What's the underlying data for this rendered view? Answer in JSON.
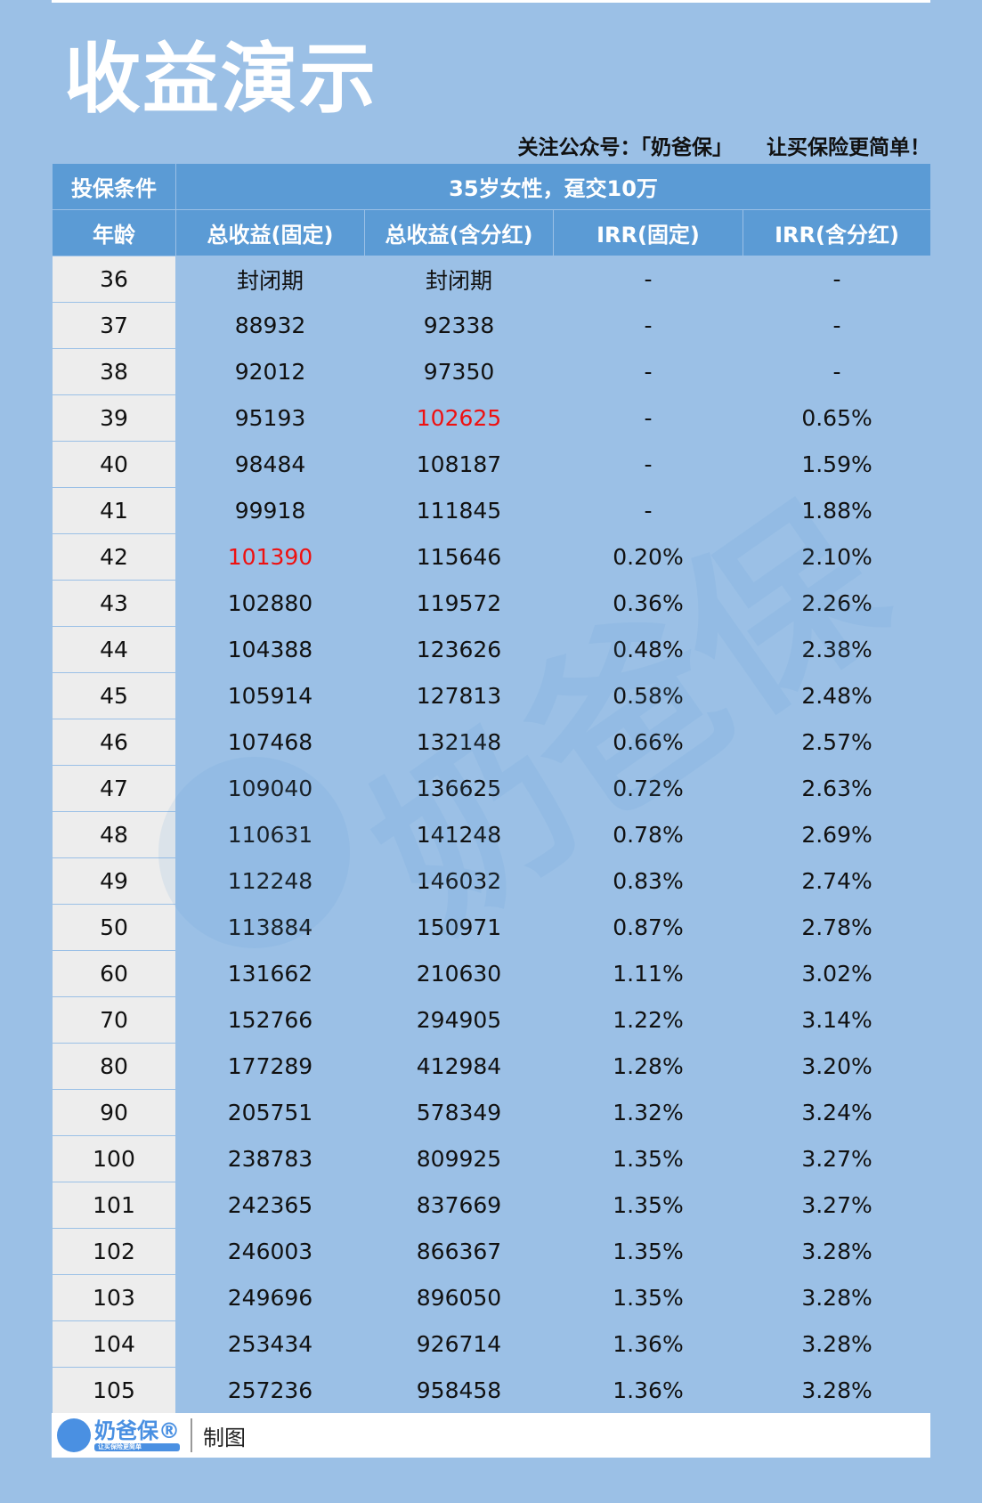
{
  "title": "收益演示",
  "slogan": {
    "follow": "关注公众号：「奶爸保」",
    "tagline": "让买保险更简单！"
  },
  "conditions": {
    "label": "投保条件",
    "value": "35岁女性，趸交10万"
  },
  "columns": [
    "年龄",
    "总收益(固定)",
    "总收益(含分红)",
    "IRR(固定)",
    "IRR(含分红)"
  ],
  "rows": [
    [
      "36",
      "封闭期",
      "封闭期",
      "-",
      "-"
    ],
    [
      "37",
      "88932",
      "92338",
      "-",
      "-"
    ],
    [
      "38",
      "92012",
      "97350",
      "-",
      "-"
    ],
    [
      "39",
      "95193",
      "102625",
      "-",
      "0.65%"
    ],
    [
      "40",
      "98484",
      "108187",
      "-",
      "1.59%"
    ],
    [
      "41",
      "99918",
      "111845",
      "-",
      "1.88%"
    ],
    [
      "42",
      "101390",
      "115646",
      "0.20%",
      "2.10%"
    ],
    [
      "43",
      "102880",
      "119572",
      "0.36%",
      "2.26%"
    ],
    [
      "44",
      "104388",
      "123626",
      "0.48%",
      "2.38%"
    ],
    [
      "45",
      "105914",
      "127813",
      "0.58%",
      "2.48%"
    ],
    [
      "46",
      "107468",
      "132148",
      "0.66%",
      "2.57%"
    ],
    [
      "47",
      "109040",
      "136625",
      "0.72%",
      "2.63%"
    ],
    [
      "48",
      "110631",
      "141248",
      "0.78%",
      "2.69%"
    ],
    [
      "49",
      "112248",
      "146032",
      "0.83%",
      "2.74%"
    ],
    [
      "50",
      "113884",
      "150971",
      "0.87%",
      "2.78%"
    ],
    [
      "60",
      "131662",
      "210630",
      "1.11%",
      "3.02%"
    ],
    [
      "70",
      "152766",
      "294905",
      "1.22%",
      "3.14%"
    ],
    [
      "80",
      "177289",
      "412984",
      "1.28%",
      "3.20%"
    ],
    [
      "90",
      "205751",
      "578349",
      "1.32%",
      "3.24%"
    ],
    [
      "100",
      "238783",
      "809925",
      "1.35%",
      "3.27%"
    ],
    [
      "101",
      "242365",
      "837669",
      "1.35%",
      "3.27%"
    ],
    [
      "102",
      "246003",
      "866367",
      "1.35%",
      "3.28%"
    ],
    [
      "103",
      "249696",
      "896050",
      "1.35%",
      "3.28%"
    ],
    [
      "104",
      "253434",
      "926714",
      "1.36%",
      "3.28%"
    ],
    [
      "105",
      "257236",
      "958458",
      "1.36%",
      "3.28%"
    ]
  ],
  "highlights": [
    {
      "row": 3,
      "col": 2
    },
    {
      "row": 6,
      "col": 1
    }
  ],
  "colors": {
    "background": "#9bc0e6",
    "header": "#5b9bd5",
    "highlight": "#ee1111"
  },
  "footer": {
    "logo_text": "奶爸保®",
    "logo_sub": "让买保险更简单",
    "credit": "制图"
  },
  "watermark": "奶爸保®"
}
